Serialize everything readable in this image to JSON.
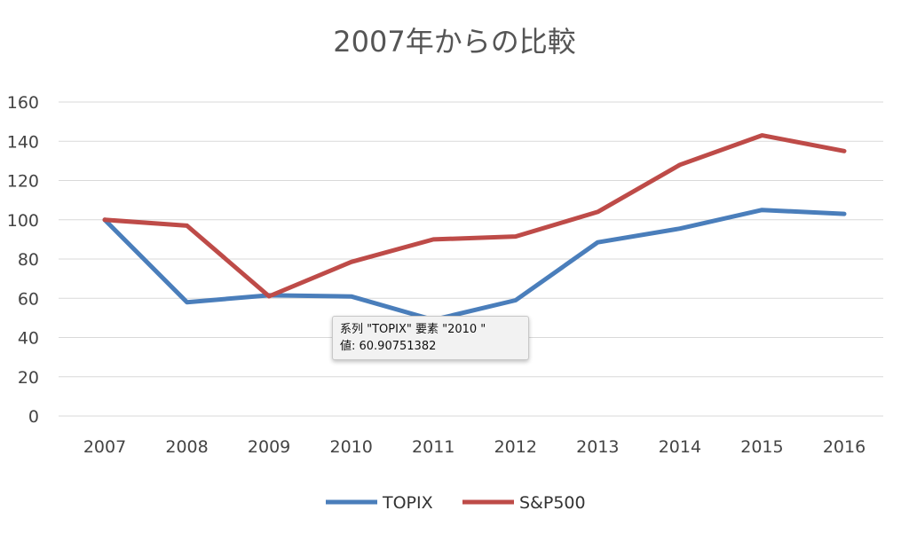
{
  "chart_data": {
    "type": "line",
    "title": "2007年からの比較",
    "categories": [
      "2007",
      "2008",
      "2009",
      "2010",
      "2011",
      "2012",
      "2013",
      "2014",
      "2015",
      "2016"
    ],
    "series": [
      {
        "name": "TOPIX",
        "color": "#4a7ebb",
        "values": [
          100,
          58,
          61.5,
          60.90751382,
          49,
          59,
          88.5,
          95.5,
          105,
          103
        ]
      },
      {
        "name": "S&P500",
        "color": "#be4b48",
        "values": [
          100,
          97,
          61,
          78.5,
          90,
          91.5,
          104,
          128,
          143,
          135
        ]
      }
    ],
    "ylim": [
      0,
      160
    ],
    "yticks": [
      "0",
      "20",
      "40",
      "60",
      "80",
      "100",
      "120",
      "140",
      "160"
    ],
    "grid": true,
    "legend_position": "bottom"
  },
  "tooltip": {
    "line1": "系列 \"TOPIX\" 要素 \"2010 \"",
    "line2": "値: 60.90751382"
  }
}
